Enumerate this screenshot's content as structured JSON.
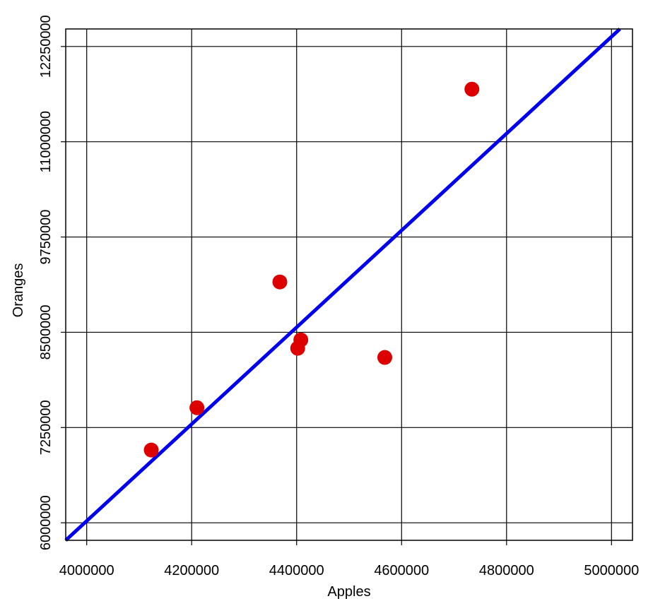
{
  "chart_data": {
    "type": "scatter",
    "title": "",
    "xlabel": "Apples",
    "ylabel": "Oranges",
    "xlim": [
      3960000,
      5040000
    ],
    "ylim": [
      5770000,
      12480000
    ],
    "x_ticks": [
      4000000,
      4200000,
      4400000,
      4600000,
      4800000,
      5000000
    ],
    "x_tick_labels": [
      "4000000",
      "4200000",
      "4400000",
      "4600000",
      "4800000",
      "5000000"
    ],
    "y_ticks": [
      6000000,
      7250000,
      8500000,
      9750000,
      11000000,
      12250000
    ],
    "y_tick_labels": [
      "6000000",
      "7250000",
      "8500000",
      "9750000",
      "11000000",
      "12250000"
    ],
    "grid": true,
    "points": [
      {
        "x": 4123000,
        "y": 6955000
      },
      {
        "x": 4210000,
        "y": 7510000
      },
      {
        "x": 4368000,
        "y": 9160000
      },
      {
        "x": 4402000,
        "y": 8290000
      },
      {
        "x": 4408000,
        "y": 8400000
      },
      {
        "x": 4568000,
        "y": 8170000
      },
      {
        "x": 4734000,
        "y": 11690000
      }
    ],
    "fit_line": {
      "x": [
        3960000,
        5016000
      ],
      "y": [
        5770000,
        12480000
      ]
    },
    "colors": {
      "points": "#dd0000",
      "fit_line": "#0000ee",
      "grid": "#000000"
    }
  }
}
